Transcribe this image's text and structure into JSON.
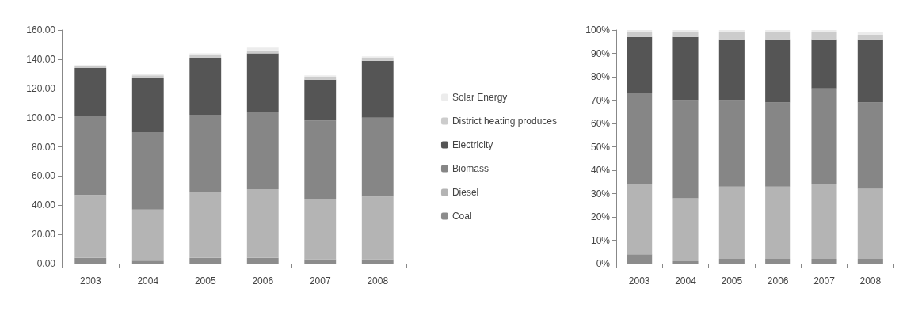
{
  "chart_data": [
    {
      "type": "bar",
      "stacked": true,
      "categories": [
        "2003",
        "2004",
        "2005",
        "2006",
        "2007",
        "2008"
      ],
      "series": [
        {
          "name": "Coal",
          "color": "#8c8c8c",
          "values": [
            4,
            2,
            4,
            4,
            3,
            3
          ]
        },
        {
          "name": "Diesel",
          "color": "#b4b4b4",
          "values": [
            43,
            35,
            45,
            47,
            41,
            43
          ]
        },
        {
          "name": "Biomass",
          "color": "#868686",
          "values": [
            54,
            53,
            53,
            53,
            54,
            54
          ]
        },
        {
          "name": "Electricity",
          "color": "#555555",
          "values": [
            33,
            37,
            39,
            40,
            28,
            39
          ]
        },
        {
          "name": "District heating produces",
          "color": "#cccccc",
          "values": [
            1,
            2,
            2,
            2,
            2,
            2
          ]
        },
        {
          "name": "Solar Energy",
          "color": "#ececec",
          "values": [
            1,
            1,
            1,
            2,
            1,
            1
          ]
        }
      ],
      "ylim": [
        0,
        160
      ],
      "yticks": [
        {
          "value": 0,
          "label": "0.00"
        },
        {
          "value": 20,
          "label": "20.00"
        },
        {
          "value": 40,
          "label": "40.00"
        },
        {
          "value": 60,
          "label": "60.00"
        },
        {
          "value": 80,
          "label": "80.00"
        },
        {
          "value": 100,
          "label": "100.00"
        },
        {
          "value": 120,
          "label": "120.00"
        },
        {
          "value": 140,
          "label": "140.00"
        },
        {
          "value": 160,
          "label": "160.00"
        }
      ],
      "grid": false,
      "legend": "right"
    },
    {
      "type": "bar",
      "stacked": true,
      "categories": [
        "2003",
        "2004",
        "2005",
        "2006",
        "2007",
        "2008"
      ],
      "series": [
        {
          "color": "#8c8c8c",
          "values": [
            4,
            1,
            2,
            2,
            2,
            2
          ]
        },
        {
          "color": "#b4b4b4",
          "values": [
            30,
            27,
            31,
            31,
            32,
            30
          ]
        },
        {
          "color": "#868686",
          "values": [
            39,
            42,
            37,
            36,
            41,
            37
          ]
        },
        {
          "color": "#555555",
          "values": [
            24,
            27,
            26,
            27,
            21,
            27
          ]
        },
        {
          "color": "#cccccc",
          "values": [
            2,
            2,
            3,
            3,
            3,
            2
          ]
        },
        {
          "color": "#ececec",
          "values": [
            1,
            1,
            1,
            1,
            1,
            1
          ]
        }
      ],
      "ylim": [
        0,
        100
      ],
      "yticks": [
        {
          "value": 0,
          "label": "0%"
        },
        {
          "value": 10,
          "label": "10%"
        },
        {
          "value": 20,
          "label": "20%"
        },
        {
          "value": 30,
          "label": "30%"
        },
        {
          "value": 40,
          "label": "40%"
        },
        {
          "value": 50,
          "label": "50%"
        },
        {
          "value": 60,
          "label": "60%"
        },
        {
          "value": 70,
          "label": "70%"
        },
        {
          "value": 80,
          "label": "80%"
        },
        {
          "value": 90,
          "label": "90%"
        },
        {
          "value": 100,
          "label": "100%"
        }
      ],
      "grid": false,
      "legend": false
    }
  ]
}
